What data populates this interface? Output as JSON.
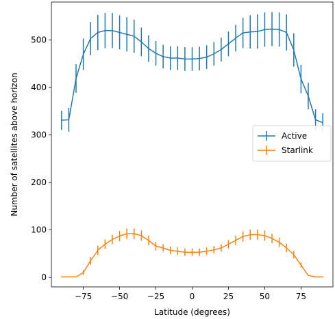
{
  "chart_data": {
    "type": "line",
    "xlabel": "Latitude (degrees)",
    "ylabel": "Number of satellites above horizon",
    "xlim": [
      -97,
      97
    ],
    "ylim": [
      -20,
      580
    ],
    "xticks": [
      -75,
      -50,
      -25,
      0,
      25,
      50,
      75
    ],
    "xtick_labels": [
      "−75",
      "−50",
      "−25",
      "0",
      "25",
      "50",
      "75"
    ],
    "yticks": [
      0,
      100,
      200,
      300,
      400,
      500
    ],
    "ytick_labels": [
      "0",
      "100",
      "200",
      "300",
      "400",
      "500"
    ],
    "legend": "right",
    "x": [
      -90,
      -85,
      -80,
      -75,
      -70,
      -65,
      -60,
      -55,
      -50,
      -45,
      -40,
      -35,
      -30,
      -25,
      -20,
      -15,
      -10,
      -5,
      0,
      5,
      10,
      15,
      20,
      25,
      30,
      35,
      40,
      45,
      50,
      55,
      60,
      65,
      70,
      75,
      80,
      85,
      90
    ],
    "series": [
      {
        "name": "Active",
        "color": "#1f77b4",
        "values": [
          331,
          332,
          419,
          470,
          503,
          516,
          520,
          520,
          516,
          512,
          508,
          496,
          482,
          472,
          465,
          462,
          462,
          460,
          460,
          461,
          464,
          471,
          480,
          492,
          504,
          515,
          517,
          518,
          522,
          523,
          522,
          516,
          479,
          418,
          382,
          332,
          326
        ],
        "errors": [
          20,
          25,
          30,
          33,
          35,
          37,
          37,
          37,
          36,
          36,
          35,
          30,
          28,
          26,
          25,
          25,
          25,
          25,
          25,
          25,
          25,
          25,
          25,
          26,
          28,
          32,
          35,
          36,
          36,
          36,
          36,
          38,
          35,
          30,
          28,
          22,
          20
        ]
      },
      {
        "name": "Starlink",
        "color": "#ff7f0e",
        "values": [
          1,
          1,
          1,
          10,
          35,
          57,
          70,
          80,
          87,
          92,
          92,
          88,
          78,
          66,
          62,
          57,
          55,
          53,
          53,
          53,
          55,
          58,
          62,
          70,
          78,
          86,
          90,
          90,
          88,
          82,
          74,
          62,
          48,
          26,
          4,
          1,
          1
        ],
        "errors": [
          1,
          1,
          1,
          5,
          8,
          10,
          10,
          10,
          11,
          11,
          11,
          11,
          10,
          9,
          8,
          8,
          8,
          8,
          8,
          8,
          8,
          8,
          8,
          9,
          10,
          11,
          11,
          11,
          11,
          10,
          10,
          9,
          8,
          5,
          1,
          1,
          1
        ]
      }
    ]
  }
}
